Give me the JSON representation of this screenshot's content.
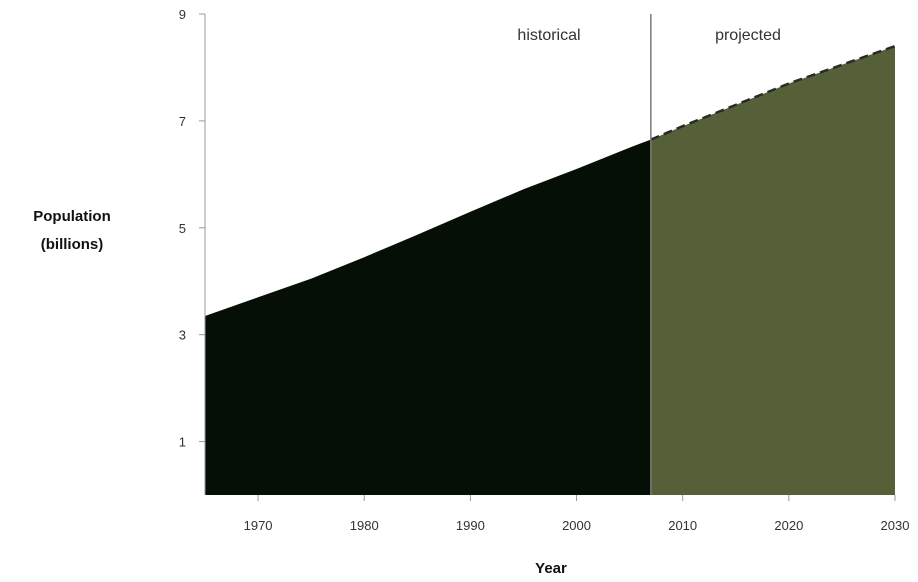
{
  "chart_data": {
    "type": "area",
    "title": "",
    "xlabel": "Year",
    "ylabel_lines": [
      "Population",
      "(billions)"
    ],
    "xlim": [
      1965,
      2030
    ],
    "ylim": [
      0,
      9
    ],
    "x_ticks": [
      1970,
      1980,
      1990,
      2000,
      2010,
      2020,
      2030
    ],
    "y_ticks": [
      1,
      3,
      5,
      7,
      9
    ],
    "divider_x": 2007,
    "regions": [
      {
        "label": "historical",
        "color": "#050f05"
      },
      {
        "label": "projected",
        "color": "#566038"
      }
    ],
    "series": [
      {
        "style": "solid",
        "x": [
          1965,
          1970,
          1975,
          1980,
          1985,
          1990,
          1995,
          2000,
          2005,
          2007
        ],
        "y": [
          3.35,
          3.7,
          4.05,
          4.45,
          4.87,
          5.3,
          5.72,
          6.1,
          6.5,
          6.65
        ]
      },
      {
        "style": "dashed",
        "x": [
          2007,
          2010,
          2015,
          2020,
          2025,
          2030
        ],
        "y": [
          6.65,
          6.9,
          7.3,
          7.7,
          8.05,
          8.4
        ]
      }
    ],
    "grid": false,
    "legend": "none"
  }
}
